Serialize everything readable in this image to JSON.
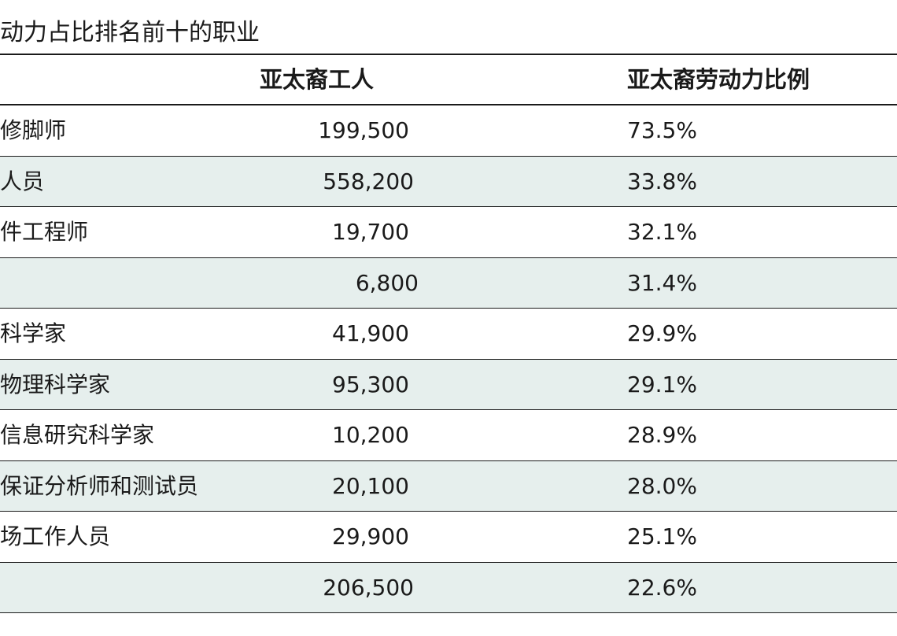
{
  "title": "动力占比排名前十的职业",
  "table": {
    "headers": {
      "occupation": "",
      "workers": "亚太裔工人",
      "share": "亚太裔劳动力比例"
    },
    "rows": [
      {
        "occupation": "修脚师",
        "workers": "199,500",
        "share": "73.5%"
      },
      {
        "occupation": "人员",
        "workers": "558,200",
        "share": "33.8%"
      },
      {
        "occupation": "件工程师",
        "workers": "19,700",
        "share": "32.1%"
      },
      {
        "occupation": "",
        "workers": "6,800",
        "share": "31.4%"
      },
      {
        "occupation": "科学家",
        "workers": "41,900",
        "share": "29.9%"
      },
      {
        "occupation": "物理科学家",
        "workers": "95,300",
        "share": "29.1%"
      },
      {
        "occupation": "信息研究科学家",
        "workers": "10,200",
        "share": "28.9%"
      },
      {
        "occupation": "保证分析师和测试员",
        "workers": "20,100",
        "share": "28.0%"
      },
      {
        "occupation": "场工作人员",
        "workers": "29,900",
        "share": "25.1%"
      },
      {
        "occupation": "",
        "workers": "206,500",
        "share": "22.6%"
      }
    ]
  }
}
